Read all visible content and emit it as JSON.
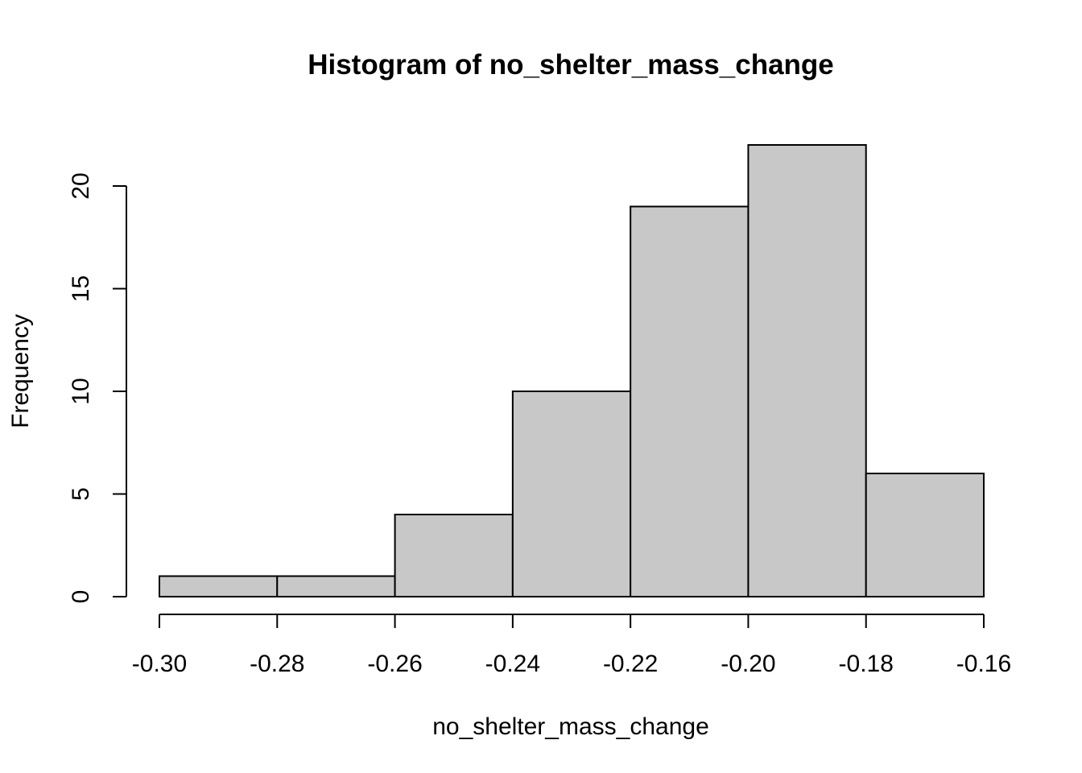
{
  "chart_data": {
    "type": "bar",
    "title": "Histogram of no_shelter_mass_change",
    "xlabel": "no_shelter_mass_change",
    "ylabel": "Frequency",
    "bins": [
      {
        "start": -0.3,
        "end": -0.28,
        "count": 1
      },
      {
        "start": -0.28,
        "end": -0.26,
        "count": 1
      },
      {
        "start": -0.26,
        "end": -0.24,
        "count": 4
      },
      {
        "start": -0.24,
        "end": -0.22,
        "count": 10
      },
      {
        "start": -0.22,
        "end": -0.2,
        "count": 19
      },
      {
        "start": -0.2,
        "end": -0.18,
        "count": 22
      },
      {
        "start": -0.18,
        "end": -0.16,
        "count": 6
      }
    ],
    "x_ticks": [
      -0.3,
      -0.28,
      -0.26,
      -0.24,
      -0.22,
      -0.2,
      -0.18,
      -0.16
    ],
    "x_tick_labels": [
      "-0.30",
      "-0.28",
      "-0.26",
      "-0.24",
      "-0.22",
      "-0.20",
      "-0.18",
      "-0.16"
    ],
    "y_ticks": [
      0,
      5,
      10,
      15,
      20
    ],
    "y_tick_labels": [
      "0",
      "5",
      "10",
      "15",
      "20"
    ],
    "xlim": [
      -0.3,
      -0.16
    ],
    "ylim": [
      0,
      22
    ],
    "grid": false,
    "legend": "none",
    "colors": {
      "bar_fill": "#c8c8c8",
      "bar_edge": "#000000"
    }
  }
}
